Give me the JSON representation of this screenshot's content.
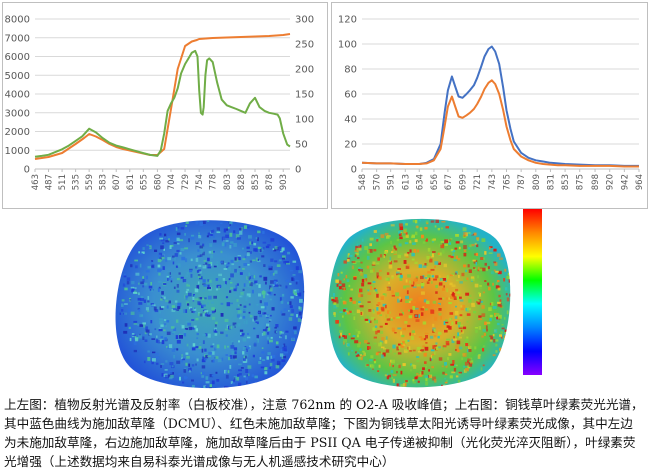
{
  "chart_data": [
    {
      "type": "line",
      "x_ticks": [
        "463",
        "487",
        "511",
        "535",
        "559",
        "583",
        "607",
        "631",
        "655",
        "680",
        "704",
        "729",
        "754",
        "778",
        "803",
        "828",
        "853",
        "878",
        "903"
      ],
      "y_ticks_left": [
        "0",
        "1000",
        "2000",
        "3000",
        "4000",
        "5000",
        "6000",
        "7000",
        "8000"
      ],
      "y_ticks_right": [
        "0",
        "50",
        "100",
        "150",
        "200",
        "250",
        "300"
      ],
      "ylim_left": [
        0,
        8000
      ],
      "ylim_right": [
        0,
        300
      ],
      "xlim": [
        463,
        915
      ],
      "grid": true,
      "series": [
        {
          "color": "#ED7D31",
          "axis": "right",
          "x": [
            463,
            487,
            511,
            535,
            550,
            559,
            571,
            583,
            595,
            607,
            619,
            631,
            643,
            655,
            667,
            680,
            692,
            704,
            716,
            729,
            741,
            750,
            754,
            766,
            778,
            803,
            828,
            853,
            878,
            903,
            915
          ],
          "y": [
            20,
            24,
            32,
            50,
            62,
            70,
            65,
            58,
            50,
            44,
            40,
            37,
            34,
            31,
            28,
            28,
            40,
            120,
            200,
            246,
            255,
            258,
            260,
            261,
            262,
            263,
            264,
            265,
            266,
            268,
            270
          ]
        },
        {
          "color": "#70AD47",
          "axis": "left",
          "x": [
            463,
            475,
            487,
            499,
            511,
            523,
            535,
            547,
            559,
            571,
            583,
            595,
            607,
            619,
            631,
            643,
            655,
            667,
            680,
            686,
            692,
            698,
            704,
            710,
            716,
            722,
            729,
            735,
            741,
            747,
            751,
            754,
            757,
            760,
            762,
            765,
            768,
            772,
            778,
            786,
            794,
            803,
            811,
            820,
            828,
            836,
            844,
            853,
            861,
            870,
            878,
            886,
            893,
            897,
            903,
            910,
            915
          ],
          "y": [
            650,
            700,
            760,
            900,
            1050,
            1250,
            1500,
            1750,
            2150,
            1950,
            1650,
            1400,
            1250,
            1150,
            1050,
            950,
            850,
            750,
            700,
            1000,
            1900,
            3100,
            3500,
            3800,
            4300,
            5100,
            5600,
            5900,
            6200,
            6300,
            6000,
            4200,
            3000,
            2900,
            3300,
            5000,
            5800,
            5900,
            5700,
            4600,
            3700,
            3400,
            3300,
            3200,
            3100,
            3000,
            3500,
            3800,
            3300,
            3100,
            3000,
            2950,
            2900,
            2700,
            1900,
            1300,
            1200
          ]
        }
      ]
    },
    {
      "type": "line",
      "x_ticks": [
        "548",
        "570",
        "591",
        "613",
        "634",
        "656",
        "677",
        "699",
        "721",
        "743",
        "765",
        "787",
        "809",
        "831",
        "853",
        "875",
        "898",
        "920",
        "942",
        "964"
      ],
      "y_ticks": [
        "0",
        "20",
        "40",
        "60",
        "80",
        "100",
        "120"
      ],
      "ylim": [
        0,
        120
      ],
      "xlim": [
        548,
        964
      ],
      "grid": true,
      "series": [
        {
          "color": "#4472C4",
          "x": [
            548,
            570,
            591,
            613,
            634,
            645,
            656,
            666,
            672,
            677,
            683,
            688,
            693,
            699,
            705,
            710,
            716,
            721,
            727,
            732,
            738,
            743,
            748,
            754,
            760,
            765,
            771,
            776,
            787,
            798,
            809,
            820,
            831,
            842,
            853,
            875,
            898,
            920,
            942,
            964
          ],
          "y": [
            5,
            4.5,
            4.5,
            4,
            4,
            5,
            8,
            20,
            45,
            63,
            74,
            66,
            58,
            57,
            60,
            63,
            67,
            73,
            82,
            90,
            96,
            98,
            94,
            84,
            65,
            47,
            32,
            22,
            13,
            9,
            7,
            6,
            5,
            4.5,
            4,
            3.5,
            3,
            3,
            2.5,
            2.5
          ]
        },
        {
          "color": "#ED7D31",
          "x": [
            548,
            570,
            591,
            613,
            634,
            645,
            656,
            666,
            672,
            677,
            683,
            688,
            693,
            699,
            705,
            710,
            716,
            721,
            727,
            732,
            738,
            743,
            748,
            754,
            760,
            765,
            771,
            776,
            787,
            798,
            809,
            820,
            831,
            842,
            853,
            875,
            898,
            920,
            942,
            964
          ],
          "y": [
            5,
            4.5,
            4.5,
            4,
            4,
            4.5,
            7,
            16,
            34,
            50,
            58,
            50,
            42,
            41,
            43,
            45,
            48,
            52,
            58,
            64,
            69,
            71,
            68,
            60,
            47,
            34,
            23,
            16,
            10,
            7,
            5,
            4,
            3.5,
            3,
            3,
            2.5,
            2.5,
            2.5,
            2,
            2
          ]
        }
      ]
    }
  ],
  "colorbar": {
    "colors": [
      "#ff0000",
      "#ff8800",
      "#ffff00",
      "#00ff00",
      "#00ffff",
      "#0088ff",
      "#0000ff",
      "#8800ff"
    ]
  },
  "caption": {
    "line1": "上左图：植物反射光谱及反射率（白板校准），注意 762nm 的 O2-A 吸收峰值；上右图：铜钱草叶绿素荧光光谱，",
    "line2": "其中蓝色曲线为施加敌草隆（DCMU）、红色未施加敌草隆；下图为铜钱草太阳光诱导叶绿素荧光成像，其中左边",
    "line3": "为未施加敌草隆，右边施加敌草隆，施加敌草隆后由于 PSII QA 电子传递被抑制（光化荧光淬灭阻断），叶绿素荧",
    "line4": "光增强（上述数据均来自易科泰光谱成像与无人机遥感技术研究中心）"
  }
}
